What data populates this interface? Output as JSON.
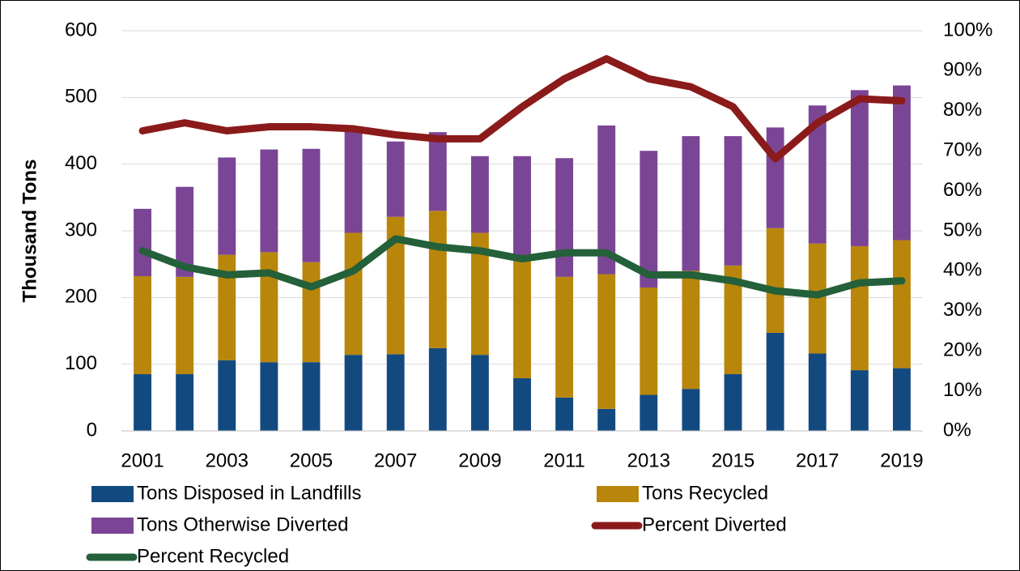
{
  "chart_data": {
    "type": "bar",
    "y_label": "Thousand Tons",
    "categories": [
      "2001",
      null,
      "2003",
      null,
      "2005",
      null,
      "2007",
      null,
      "2009",
      null,
      "2011",
      null,
      "2013",
      null,
      "2015",
      null,
      "2017",
      null,
      "2019"
    ],
    "series": [
      {
        "name": "Tons Disposed in Landfills",
        "type": "bar",
        "color": "#124a80",
        "values": [
          85,
          85,
          106,
          103,
          103,
          114,
          115,
          124,
          114,
          79,
          50,
          33,
          54,
          63,
          85,
          147,
          116,
          91,
          94
        ]
      },
      {
        "name": "Tons Recycled",
        "type": "bar",
        "color": "#b8860b",
        "values": [
          147,
          146,
          158,
          165,
          150,
          183,
          206,
          206,
          183,
          176,
          181,
          202,
          161,
          177,
          163,
          157,
          165,
          186,
          192
        ]
      },
      {
        "name": "Tons Otherwise Diverted",
        "type": "bar",
        "color": "#7b4596",
        "values": [
          101,
          135,
          146,
          154,
          170,
          158,
          113,
          118,
          115,
          157,
          178,
          223,
          205,
          202,
          194,
          151,
          207,
          234,
          232
        ]
      },
      {
        "name": "Percent Diverted",
        "type": "line",
        "axis": "y2",
        "color": "#8b1a1a",
        "values": [
          75,
          77,
          75,
          76,
          76,
          75.5,
          74,
          73,
          73,
          81,
          88,
          93,
          88,
          86,
          81,
          68,
          77,
          83,
          82.5
        ]
      },
      {
        "name": "Percent Recycled",
        "type": "line",
        "axis": "y2",
        "color": "#24603a",
        "values": [
          45,
          41,
          39,
          39.5,
          36,
          40,
          48,
          46,
          45,
          43,
          44.5,
          44.5,
          39,
          39,
          37.5,
          35,
          34,
          37,
          37.5
        ]
      }
    ],
    "ylim": [
      0,
      600
    ],
    "yticks": [
      0,
      100,
      200,
      300,
      400,
      500,
      600
    ],
    "y2lim": [
      0,
      100
    ],
    "y2ticks": [
      {
        "value": 0,
        "label": "0%"
      },
      {
        "value": 10,
        "label": "10%"
      },
      {
        "value": 20,
        "label": "20%"
      },
      {
        "value": 30,
        "label": "30%"
      },
      {
        "value": 40,
        "label": "40%"
      },
      {
        "value": 50,
        "label": "50%"
      },
      {
        "value": 60,
        "label": "60%"
      },
      {
        "value": 70,
        "label": "70%"
      },
      {
        "value": 80,
        "label": "80%"
      },
      {
        "value": 90,
        "label": "90%"
      },
      {
        "value": 100,
        "label": "100%"
      }
    ],
    "grid": true,
    "legend": "bottom"
  }
}
